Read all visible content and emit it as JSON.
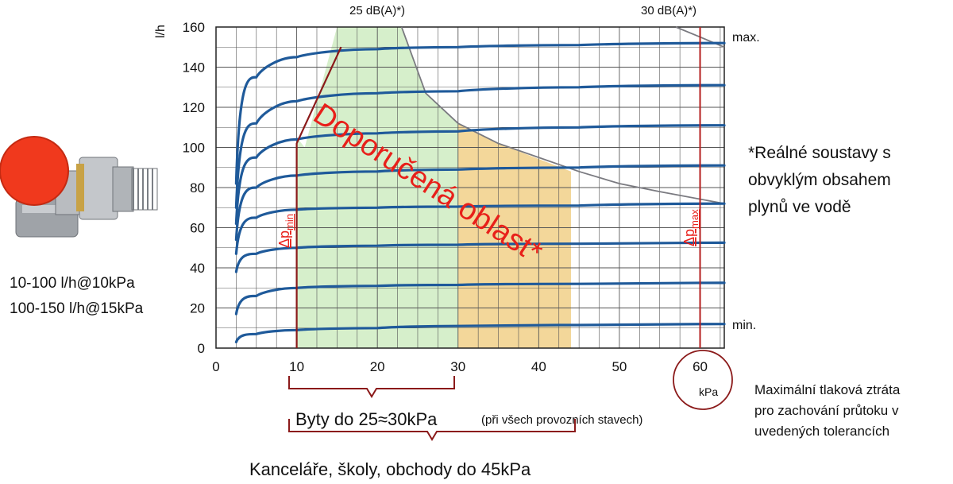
{
  "chart_data": {
    "type": "line",
    "ylabel": "l/h",
    "xunit": "kPa",
    "xlim": [
      0,
      63
    ],
    "ylim": [
      0,
      160
    ],
    "xticks": [
      0,
      10,
      20,
      30,
      40,
      50,
      60
    ],
    "yticks": [
      0,
      20,
      40,
      60,
      80,
      100,
      120,
      140,
      160
    ],
    "grid": true,
    "series": [
      {
        "name": "min.",
        "x": [
          2.5,
          5,
          10,
          20,
          30,
          45,
          63
        ],
        "y": [
          3,
          7,
          9,
          10,
          11,
          11.5,
          12
        ]
      },
      {
        "name": "",
        "x": [
          2.5,
          5,
          10,
          20,
          30,
          45,
          63
        ],
        "y": [
          17,
          26,
          30,
          31,
          31.5,
          32,
          32.5
        ]
      },
      {
        "name": "",
        "x": [
          2.5,
          5,
          10,
          20,
          30,
          45,
          63
        ],
        "y": [
          38,
          47,
          50,
          51,
          51.5,
          52,
          52.5
        ]
      },
      {
        "name": "",
        "x": [
          2.5,
          5,
          10,
          20,
          30,
          45,
          63
        ],
        "y": [
          47,
          65,
          69,
          70,
          70.5,
          71,
          72
        ]
      },
      {
        "name": "",
        "x": [
          2.5,
          5,
          10,
          20,
          30,
          45,
          63
        ],
        "y": [
          54,
          80,
          86,
          88,
          89,
          90,
          91
        ]
      },
      {
        "name": "",
        "x": [
          2.5,
          5,
          10,
          20,
          30,
          45,
          63
        ],
        "y": [
          62,
          95,
          104,
          107,
          108,
          110,
          111
        ]
      },
      {
        "name": "",
        "x": [
          2.5,
          5,
          10,
          20,
          30,
          45,
          63
        ],
        "y": [
          70,
          112,
          123,
          127,
          128,
          130,
          131
        ]
      },
      {
        "name": "max.",
        "x": [
          2.5,
          5,
          10,
          20,
          30,
          45,
          63
        ],
        "y": [
          82,
          135,
          145,
          149,
          150,
          151,
          152
        ]
      }
    ],
    "noise_curves": [
      {
        "label": "25 dB(A)*)",
        "x": [
          23,
          26,
          30,
          35,
          40,
          45,
          50,
          55,
          63
        ],
        "y": [
          160,
          127,
          112,
          102,
          95,
          88,
          82,
          78,
          72
        ]
      },
      {
        "label": "30 dB(A)*)",
        "x": [
          57,
          60,
          63
        ],
        "y": [
          160,
          155,
          150
        ]
      }
    ],
    "recommended_green": [
      [
        11,
        100
      ],
      [
        15,
        160
      ],
      [
        23,
        160
      ],
      [
        26,
        127
      ],
      [
        30,
        112
      ],
      [
        30,
        0
      ],
      [
        10,
        0
      ],
      [
        10,
        105
      ]
    ],
    "recommended_orange": [
      [
        30,
        112
      ],
      [
        35,
        102
      ],
      [
        44,
        88
      ],
      [
        44,
        0
      ],
      [
        30,
        0
      ]
    ],
    "dp_min": {
      "x": 10,
      "label_main": "Δp",
      "label_sub": "min",
      "y_break": 102,
      "x_top": 15.5,
      "y_top": 150
    },
    "dp_max": {
      "x": 60,
      "label_main": "Δp",
      "label_sub": "max"
    },
    "region_label": "Doporučená oblast*",
    "annotations": {
      "max": "max.",
      "min": "min.",
      "note": [
        "*Reálné soustavy s",
        "obvyklým obsahem",
        "plynů ve vodě"
      ],
      "flow_specs": [
        "10-100 l/h@10kPa",
        "100-150 l/h@15kPa"
      ],
      "max_loss": [
        "Maximální tlaková ztráta",
        "pro zachování průtoku v",
        "uvedených tolerancích"
      ],
      "apartments_main": "Byty do 25≈30kPa",
      "apartments_note": "(při všech provozních stavech)",
      "offices": "Kanceláře, školy, obchody do 45kPa"
    },
    "colors": {
      "curve": "#1f5a9a",
      "green": "#d6efcb",
      "orange": "#f3d79a",
      "red": "#e8201a",
      "darkred": "#8b1a1a",
      "dpmax_line": "#b52020",
      "noise": "#7a7a80",
      "grid": "#555555"
    }
  }
}
